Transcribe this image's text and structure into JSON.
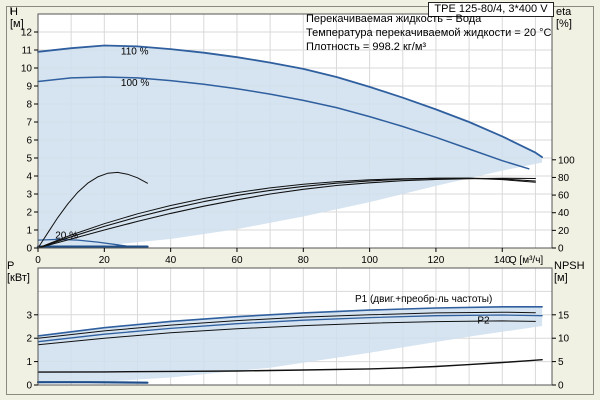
{
  "title": "TPE 125-80/4, 3*400 V",
  "info_lines": [
    "Перекачиваемая жидкость = Вода",
    "Температура перекачиваемой жидкости = 20 °C",
    "Плотность = 998.2 кг/м³"
  ],
  "axis_labels": {
    "h": "H\n[м]",
    "eta": "eta\n[%]",
    "p": "P\n[кВт]",
    "npsh": "NPSH\n[м]"
  },
  "colors": {
    "background": "#f0f0e3",
    "plot_bg": "#ffffff",
    "grid": "#d9d9d9",
    "frame": "#555555",
    "envelope": "#cfdfee",
    "curve_blue": "#2f5f9e",
    "curve_black": "#111111"
  },
  "chart_data": [
    {
      "type": "line",
      "name": "hq-eta-chart",
      "xlabel": "Q [м³/ч]",
      "xlabel_x": 142,
      "ylabel": "H [м]",
      "y2label": "eta [%]",
      "xlim": [
        0,
        155
      ],
      "ylim": [
        0,
        13
      ],
      "x_ticks": [
        0,
        20,
        40,
        60,
        80,
        100,
        120,
        140
      ],
      "y_ticks": [
        0,
        1,
        2,
        3,
        4,
        5,
        6,
        7,
        8,
        9,
        10,
        11,
        12
      ],
      "y2_ticks": [
        0,
        20,
        40,
        60,
        80,
        100
      ],
      "y2_to_y1": 0.049,
      "grid_step_x": 10,
      "grid_step_y": 1,
      "envelope": [
        [
          0,
          10.9
        ],
        [
          10,
          11.1
        ],
        [
          20,
          11.25
        ],
        [
          30,
          11.2
        ],
        [
          40,
          11.05
        ],
        [
          50,
          10.85
        ],
        [
          60,
          10.6
        ],
        [
          70,
          10.3
        ],
        [
          80,
          9.95
        ],
        [
          90,
          9.5
        ],
        [
          100,
          8.95
        ],
        [
          110,
          8.35
        ],
        [
          120,
          7.7
        ],
        [
          130,
          7.0
        ],
        [
          140,
          6.2
        ],
        [
          150,
          5.3
        ],
        [
          152,
          5.05
        ],
        [
          152,
          4.75
        ],
        [
          140,
          4.3
        ],
        [
          120,
          3.45
        ],
        [
          100,
          2.55
        ],
        [
          80,
          1.75
        ],
        [
          60,
          1.05
        ],
        [
          40,
          0.5
        ],
        [
          20,
          0.14
        ],
        [
          0,
          0
        ]
      ],
      "series": [
        {
          "name": "speed-110",
          "color": "#2f5f9e",
          "w": 1.8,
          "pts": [
            [
              0,
              10.9
            ],
            [
              10,
              11.1
            ],
            [
              20,
              11.25
            ],
            [
              30,
              11.2
            ],
            [
              40,
              11.05
            ],
            [
              50,
              10.85
            ],
            [
              60,
              10.6
            ],
            [
              70,
              10.3
            ],
            [
              80,
              9.95
            ],
            [
              90,
              9.5
            ],
            [
              100,
              8.95
            ],
            [
              110,
              8.35
            ],
            [
              120,
              7.7
            ],
            [
              130,
              7.0
            ],
            [
              140,
              6.2
            ],
            [
              150,
              5.3
            ],
            [
              152,
              5.05
            ]
          ]
        },
        {
          "name": "speed-100",
          "color": "#2f5f9e",
          "w": 1.5,
          "pts": [
            [
              0,
              9.25
            ],
            [
              10,
              9.45
            ],
            [
              20,
              9.5
            ],
            [
              30,
              9.45
            ],
            [
              40,
              9.3
            ],
            [
              50,
              9.1
            ],
            [
              60,
              8.85
            ],
            [
              70,
              8.55
            ],
            [
              80,
              8.2
            ],
            [
              90,
              7.8
            ],
            [
              100,
              7.3
            ],
            [
              110,
              6.75
            ],
            [
              120,
              6.15
            ],
            [
              130,
              5.5
            ],
            [
              140,
              4.85
            ],
            [
              148,
              4.4
            ]
          ]
        },
        {
          "name": "speed-20",
          "color": "#2f5f9e",
          "w": 1.3,
          "pts": [
            [
              0,
              0.44
            ],
            [
              6,
              0.48
            ],
            [
              12,
              0.44
            ],
            [
              18,
              0.33
            ],
            [
              24,
              0.18
            ],
            [
              29,
              0.05
            ]
          ]
        },
        {
          "name": "speed-20-baseline",
          "color": "#1d4e89",
          "w": 2.4,
          "pts": [
            [
              0,
              0.07
            ],
            [
              33,
              0.07
            ]
          ]
        },
        {
          "name": "eta-a",
          "color": "#111111",
          "w": 1.1,
          "pts": [
            [
              0,
              0
            ],
            [
              10,
              0.62
            ],
            [
              20,
              1.2
            ],
            [
              30,
              1.72
            ],
            [
              40,
              2.18
            ],
            [
              50,
              2.58
            ],
            [
              60,
              2.92
            ],
            [
              70,
              3.2
            ],
            [
              80,
              3.42
            ],
            [
              90,
              3.6
            ],
            [
              100,
              3.73
            ],
            [
              110,
              3.82
            ],
            [
              120,
              3.87
            ],
            [
              130,
              3.88
            ],
            [
              140,
              3.84
            ],
            [
              150,
              3.72
            ]
          ]
        },
        {
          "name": "eta-b",
          "color": "#111111",
          "w": 1.1,
          "pts": [
            [
              0,
              0
            ],
            [
              10,
              0.5
            ],
            [
              20,
              1.0
            ],
            [
              30,
              1.48
            ],
            [
              40,
              1.92
            ],
            [
              50,
              2.32
            ],
            [
              60,
              2.68
            ],
            [
              70,
              3.0
            ],
            [
              80,
              3.26
            ],
            [
              90,
              3.47
            ],
            [
              100,
              3.62
            ],
            [
              110,
              3.74
            ],
            [
              120,
              3.81
            ],
            [
              130,
              3.85
            ],
            [
              140,
              3.87
            ],
            [
              150,
              3.86
            ]
          ]
        },
        {
          "name": "eta-c",
          "color": "#111111",
          "w": 1.0,
          "pts": [
            [
              0,
              0
            ],
            [
              10,
              0.72
            ],
            [
              20,
              1.35
            ],
            [
              30,
              1.9
            ],
            [
              40,
              2.36
            ],
            [
              50,
              2.75
            ],
            [
              60,
              3.08
            ],
            [
              70,
              3.34
            ],
            [
              80,
              3.54
            ],
            [
              90,
              3.69
            ],
            [
              100,
              3.79
            ],
            [
              110,
              3.85
            ],
            [
              120,
              3.88
            ],
            [
              130,
              3.87
            ],
            [
              140,
              3.8
            ],
            [
              150,
              3.65
            ]
          ]
        },
        {
          "name": "eta-20",
          "color": "#111111",
          "w": 1.0,
          "pts": [
            [
              0,
              0
            ],
            [
              3,
              0.85
            ],
            [
              6,
              1.7
            ],
            [
              9,
              2.45
            ],
            [
              12,
              3.1
            ],
            [
              15,
              3.6
            ],
            [
              18,
              3.95
            ],
            [
              21,
              4.15
            ],
            [
              24,
              4.2
            ],
            [
              27,
              4.1
            ],
            [
              30,
              3.9
            ],
            [
              33,
              3.6
            ]
          ]
        }
      ],
      "labels": [
        {
          "name": "speed-110-label",
          "text": "110 %",
          "x": 25,
          "y": 10.75,
          "color": "#000000",
          "anchor": "start"
        },
        {
          "name": "speed-100-label",
          "text": "100 %",
          "x": 25,
          "y": 9.0,
          "color": "#000000",
          "anchor": "start"
        },
        {
          "name": "speed-20-label",
          "text": "20 %",
          "x": 5.2,
          "y": 0.52,
          "color": "#000000",
          "anchor": "start"
        }
      ]
    },
    {
      "type": "line",
      "name": "power-npsh-chart",
      "xlabel": "",
      "xlabel_x": 142,
      "ylabel": "P [кВт]",
      "y2label": "NPSH [м]",
      "xlim": [
        0,
        155
      ],
      "ylim": [
        0,
        5
      ],
      "x_ticks": [],
      "y_ticks": [
        0,
        1,
        2,
        3
      ],
      "y2_ticks": [
        0,
        5,
        10,
        15
      ],
      "y2_to_y1": 0.2,
      "grid_step_x": 10,
      "grid_step_y": 1,
      "envelope": [
        [
          0,
          2.1
        ],
        [
          20,
          2.45
        ],
        [
          40,
          2.72
        ],
        [
          60,
          2.92
        ],
        [
          80,
          3.08
        ],
        [
          100,
          3.2
        ],
        [
          120,
          3.29
        ],
        [
          140,
          3.34
        ],
        [
          152,
          3.34
        ],
        [
          152,
          2.52
        ],
        [
          130,
          2.07
        ],
        [
          100,
          1.38
        ],
        [
          70,
          0.74
        ],
        [
          40,
          0.32
        ],
        [
          20,
          0.14
        ],
        [
          0,
          0.06
        ]
      ],
      "series": [
        {
          "name": "p1",
          "color": "#2f5f9e",
          "w": 1.6,
          "pts": [
            [
              0,
              2.1
            ],
            [
              20,
              2.45
            ],
            [
              40,
              2.72
            ],
            [
              60,
              2.92
            ],
            [
              80,
              3.08
            ],
            [
              100,
              3.2
            ],
            [
              120,
              3.29
            ],
            [
              140,
              3.34
            ],
            [
              152,
              3.34
            ]
          ]
        },
        {
          "name": "p2",
          "color": "#2f5f9e",
          "w": 1.3,
          "pts": [
            [
              0,
              1.85
            ],
            [
              20,
              2.17
            ],
            [
              40,
              2.42
            ],
            [
              60,
              2.62
            ],
            [
              80,
              2.77
            ],
            [
              100,
              2.88
            ],
            [
              120,
              2.96
            ],
            [
              140,
              2.99
            ],
            [
              152,
              2.96
            ]
          ]
        },
        {
          "name": "p-black-upper",
          "color": "#111111",
          "w": 1.0,
          "pts": [
            [
              0,
              2.0
            ],
            [
              20,
              2.31
            ],
            [
              40,
              2.56
            ],
            [
              60,
              2.75
            ],
            [
              80,
              2.9
            ],
            [
              100,
              3.0
            ],
            [
              120,
              3.08
            ],
            [
              140,
              3.11
            ],
            [
              150,
              3.09
            ]
          ]
        },
        {
          "name": "p-black-lower",
          "color": "#111111",
          "w": 1.0,
          "pts": [
            [
              0,
              1.72
            ],
            [
              20,
              2.0
            ],
            [
              40,
              2.23
            ],
            [
              60,
              2.4
            ],
            [
              80,
              2.54
            ],
            [
              100,
              2.64
            ],
            [
              120,
              2.71
            ],
            [
              140,
              2.74
            ],
            [
              150,
              2.72
            ]
          ]
        },
        {
          "name": "npsh",
          "color": "#111111",
          "w": 1.4,
          "pts": [
            [
              0,
              0.55
            ],
            [
              20,
              0.56
            ],
            [
              40,
              0.58
            ],
            [
              60,
              0.6
            ],
            [
              80,
              0.64
            ],
            [
              100,
              0.69
            ],
            [
              110,
              0.73
            ],
            [
              120,
              0.79
            ],
            [
              130,
              0.87
            ],
            [
              140,
              0.96
            ],
            [
              148,
              1.04
            ],
            [
              152,
              1.08
            ]
          ]
        },
        {
          "name": "p-20",
          "color": "#1d4e89",
          "w": 2.2,
          "pts": [
            [
              0,
              0.12
            ],
            [
              15,
              0.12
            ],
            [
              33,
              0.1
            ]
          ]
        }
      ],
      "labels": [
        {
          "name": "p1-label",
          "text": "P1 (двиг.+преобр-ль частоты)",
          "x": 137,
          "y": 3.55,
          "color": "#2f5f9e",
          "anchor": "end"
        },
        {
          "name": "p2-label",
          "text": "P2",
          "x": 132.5,
          "y": 2.62,
          "color": "#2f5f9e",
          "anchor": "start"
        }
      ]
    }
  ]
}
